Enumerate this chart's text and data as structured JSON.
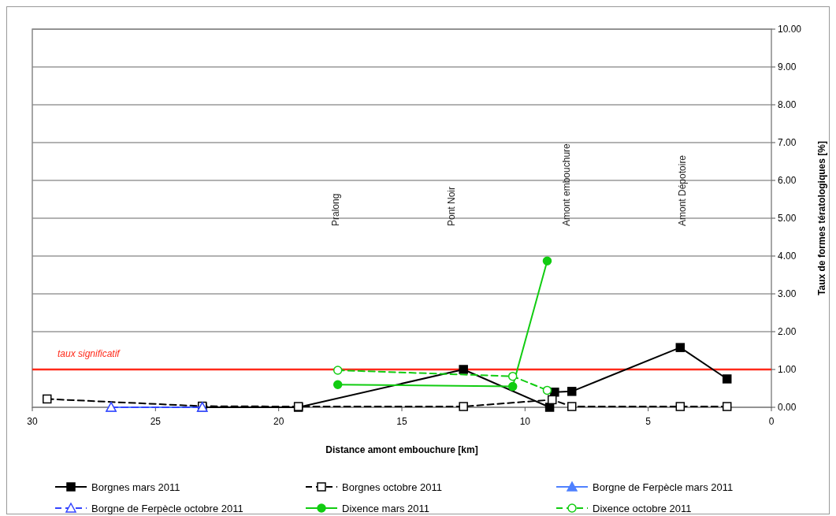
{
  "chart_data": {
    "type": "line",
    "xlabel": "Distance amont embouchure [km]",
    "ylabel": "Taux de formes tératologiques [%]",
    "xlim": [
      30,
      0
    ],
    "xticks": [
      30,
      25,
      20,
      15,
      10,
      5,
      0
    ],
    "ylim": [
      0,
      10
    ],
    "yticks": [
      {
        "value": 0,
        "label": "0.00"
      },
      {
        "value": 1,
        "label": "1.00"
      },
      {
        "value": 2,
        "label": "2.00"
      },
      {
        "value": 3,
        "label": "3.00"
      },
      {
        "value": 4,
        "label": "4.00"
      },
      {
        "value": 5,
        "label": "5.00"
      },
      {
        "value": 6,
        "label": "6.00"
      },
      {
        "value": 7,
        "label": "7.00"
      },
      {
        "value": 8,
        "label": "8.00"
      },
      {
        "value": 9,
        "label": "9.00"
      },
      {
        "value": 10,
        "label": "10.00"
      }
    ],
    "grid": "y",
    "legend": "bottom",
    "series": [
      {
        "name": "Borgnes mars 2011",
        "color": "#000000",
        "marker": "square",
        "line_style": "solid",
        "x": [
          23.1,
          19.2,
          12.5,
          9.0,
          8.8,
          8.1,
          3.7,
          1.8
        ],
        "values": [
          0,
          0,
          1.0,
          0,
          0.4,
          0.42,
          1.58,
          0.75
        ]
      },
      {
        "name": "Borgnes octobre 2011",
        "color": "#000000",
        "marker": "square",
        "line_style": "dashed",
        "x": [
          29.4,
          23.1,
          19.2,
          12.5,
          8.9,
          8.1,
          3.7,
          1.8
        ],
        "values": [
          0.22,
          0.03,
          0.02,
          0.02,
          0.2,
          0.02,
          0.02,
          0.02
        ]
      },
      {
        "name": "Borgne de Ferpècle mars 2011",
        "color": "#4f81ff",
        "marker": "triangle",
        "line_style": "solid",
        "x": [
          26.8,
          23.1
        ],
        "values": [
          0,
          0
        ]
      },
      {
        "name": "Borgne de Ferpècle octobre 2011",
        "color": "#3344ff",
        "marker": "triangle",
        "line_style": "dashed",
        "x": [
          26.8,
          23.1
        ],
        "values": [
          0,
          0
        ]
      },
      {
        "name": "Dixence mars 2011",
        "color": "#11cc11",
        "marker": "circle",
        "line_style": "solid",
        "x": [
          17.6,
          10.5,
          9.1
        ],
        "values": [
          0.6,
          0.55,
          3.87
        ]
      },
      {
        "name": "Dixence octobre 2011",
        "color": "#11cc11",
        "marker": "circle",
        "line_style": "dashed",
        "x": [
          17.6,
          10.5,
          9.1
        ],
        "values": [
          0.98,
          0.82,
          0.45
        ]
      }
    ],
    "ref_lines": [
      {
        "axis": "y",
        "value": 1,
        "label": "taux significatif",
        "color": "#ff2a1a"
      }
    ],
    "annotations": [
      "Pralong",
      "Pont Noir",
      "Amont embouchure",
      "Amont Dépotoire"
    ]
  }
}
